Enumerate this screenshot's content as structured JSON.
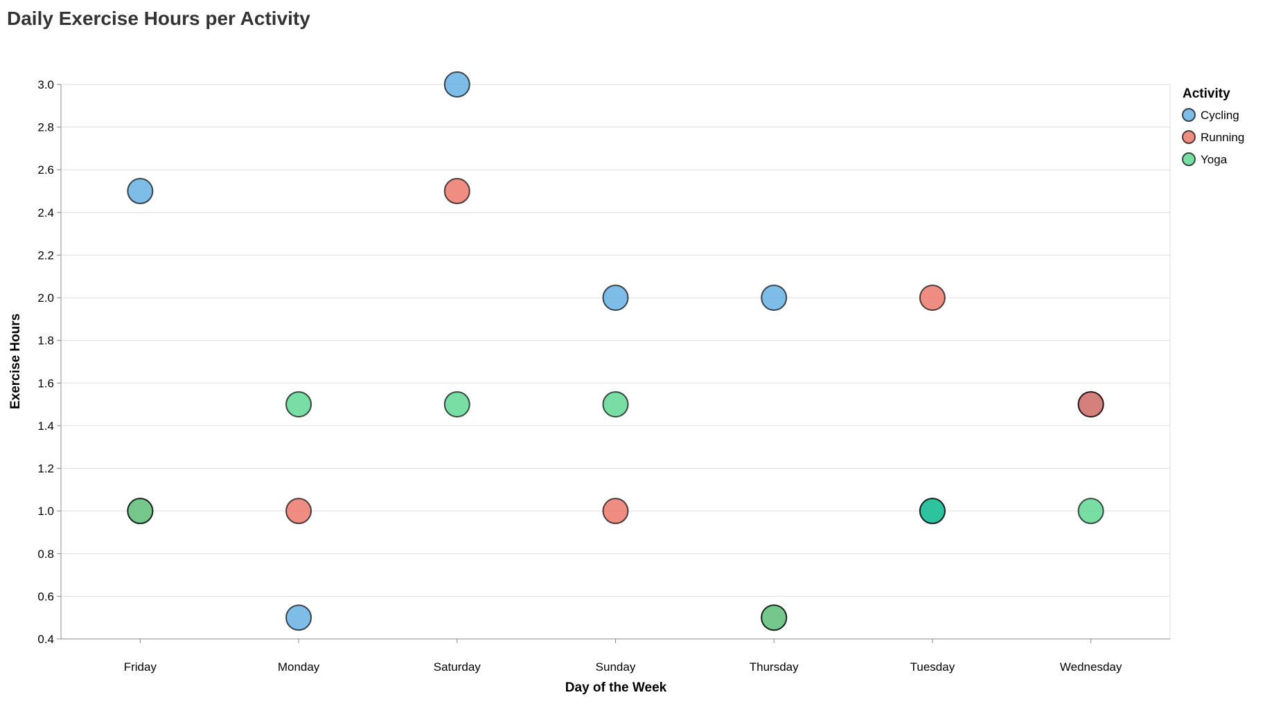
{
  "chart_data": {
    "type": "scatter",
    "title": "Daily Exercise Hours per Activity",
    "xlabel": "Day of the Week",
    "ylabel": "Exercise Hours",
    "categories": [
      "Friday",
      "Monday",
      "Saturday",
      "Sunday",
      "Thursday",
      "Tuesday",
      "Wednesday"
    ],
    "ylim": [
      0.4,
      3.0
    ],
    "yticks": [
      0.4,
      0.6,
      0.8,
      1.0,
      1.2,
      1.4,
      1.6,
      1.8,
      2.0,
      2.2,
      2.4,
      2.6,
      2.8,
      3.0
    ],
    "grid": true,
    "legend": {
      "title": "Activity",
      "placement": "top-right"
    },
    "series": [
      {
        "name": "Cycling",
        "color": "#5DADE2",
        "points": [
          {
            "x": "Friday",
            "y": 2.5
          },
          {
            "x": "Monday",
            "y": 0.5
          },
          {
            "x": "Saturday",
            "y": 3.0
          },
          {
            "x": "Sunday",
            "y": 2.0
          },
          {
            "x": "Thursday",
            "y": 2.0
          },
          {
            "x": "Wednesday",
            "y": 1.5
          }
        ]
      },
      {
        "name": "Running",
        "color": "#EC7063",
        "points": [
          {
            "x": "Friday",
            "y": 1.0
          },
          {
            "x": "Monday",
            "y": 1.0
          },
          {
            "x": "Saturday",
            "y": 2.5
          },
          {
            "x": "Sunday",
            "y": 1.0
          },
          {
            "x": "Thursday",
            "y": 0.5
          },
          {
            "x": "Tuesday",
            "y": 2.0
          },
          {
            "x": "Wednesday",
            "y": 1.5
          }
        ]
      },
      {
        "name": "Yoga",
        "color": "#58D68D",
        "points": [
          {
            "x": "Friday",
            "y": 1.0
          },
          {
            "x": "Monday",
            "y": 1.5
          },
          {
            "x": "Saturday",
            "y": 1.5
          },
          {
            "x": "Sunday",
            "y": 1.5
          },
          {
            "x": "Thursday",
            "y": 0.5
          },
          {
            "x": "Tuesday",
            "y": 1.0
          },
          {
            "x": "Wednesday",
            "y": 1.0
          }
        ]
      },
      {
        "name": "",
        "color": "#1ABC9C",
        "points": [
          {
            "x": "Tuesday",
            "y": 1.0
          }
        ]
      }
    ]
  }
}
